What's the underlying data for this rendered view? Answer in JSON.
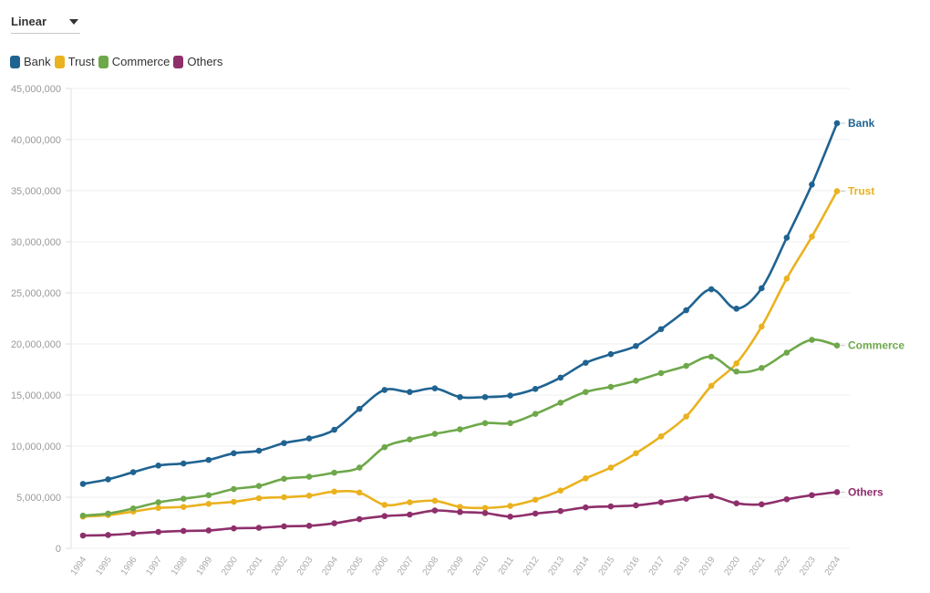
{
  "controls": {
    "scale_label": "Linear"
  },
  "chart_data": {
    "type": "line",
    "x": [
      "1994",
      "1995",
      "1996",
      "1997",
      "1998",
      "1999",
      "2000",
      "2001",
      "2002",
      "2003",
      "2004",
      "2005",
      "2006",
      "2007",
      "2008",
      "2009",
      "2010",
      "2011",
      "2012",
      "2013",
      "2014",
      "2015",
      "2016",
      "2017",
      "2018",
      "2019",
      "2020",
      "2021",
      "2022",
      "2023",
      "2024"
    ],
    "ylim": [
      0,
      45000000
    ],
    "yticks": [
      0,
      5000000,
      10000000,
      15000000,
      20000000,
      25000000,
      30000000,
      35000000,
      40000000,
      45000000
    ],
    "ytick_labels": [
      "0",
      "5,000,000",
      "10,000,000",
      "15,000,000",
      "20,000,000",
      "25,000,000",
      "30,000,000",
      "35,000,000",
      "40,000,000",
      "45,000,000"
    ],
    "grid": true,
    "legend_position": "top-left",
    "series": [
      {
        "name": "Bank",
        "color": "#1f6391",
        "values": [
          6300000,
          6750000,
          7450000,
          8100000,
          8300000,
          8650000,
          9300000,
          9550000,
          10300000,
          10750000,
          11600000,
          13650000,
          15500000,
          15300000,
          15650000,
          14800000,
          14800000,
          14950000,
          15600000,
          16700000,
          18150000,
          19000000,
          19800000,
          21450000,
          23300000,
          25350000,
          23450000,
          25450000,
          30400000,
          35600000,
          41600000
        ]
      },
      {
        "name": "Trust",
        "color": "#eab21f",
        "values": [
          3100000,
          3250000,
          3600000,
          3950000,
          4050000,
          4350000,
          4550000,
          4900000,
          5000000,
          5150000,
          5550000,
          5450000,
          4250000,
          4500000,
          4650000,
          4050000,
          3950000,
          4150000,
          4750000,
          5650000,
          6850000,
          7900000,
          9300000,
          10950000,
          12900000,
          15900000,
          18100000,
          21700000,
          26400000,
          30500000,
          34950000
        ]
      },
      {
        "name": "Commerce",
        "color": "#6ea84a",
        "values": [
          3200000,
          3400000,
          3900000,
          4500000,
          4850000,
          5200000,
          5800000,
          6100000,
          6800000,
          7000000,
          7400000,
          7900000,
          9900000,
          10650000,
          11200000,
          11650000,
          12250000,
          12250000,
          13150000,
          14250000,
          15300000,
          15800000,
          16400000,
          17150000,
          17850000,
          18750000,
          17300000,
          17650000,
          19150000,
          20400000,
          19850000
        ]
      },
      {
        "name": "Others",
        "color": "#8e2f6b",
        "values": [
          1250000,
          1300000,
          1450000,
          1600000,
          1700000,
          1750000,
          1950000,
          2000000,
          2150000,
          2200000,
          2450000,
          2850000,
          3150000,
          3300000,
          3700000,
          3550000,
          3450000,
          3100000,
          3400000,
          3650000,
          4000000,
          4100000,
          4200000,
          4500000,
          4850000,
          5100000,
          4400000,
          4300000,
          4800000,
          5200000,
          5500000
        ]
      }
    ]
  }
}
